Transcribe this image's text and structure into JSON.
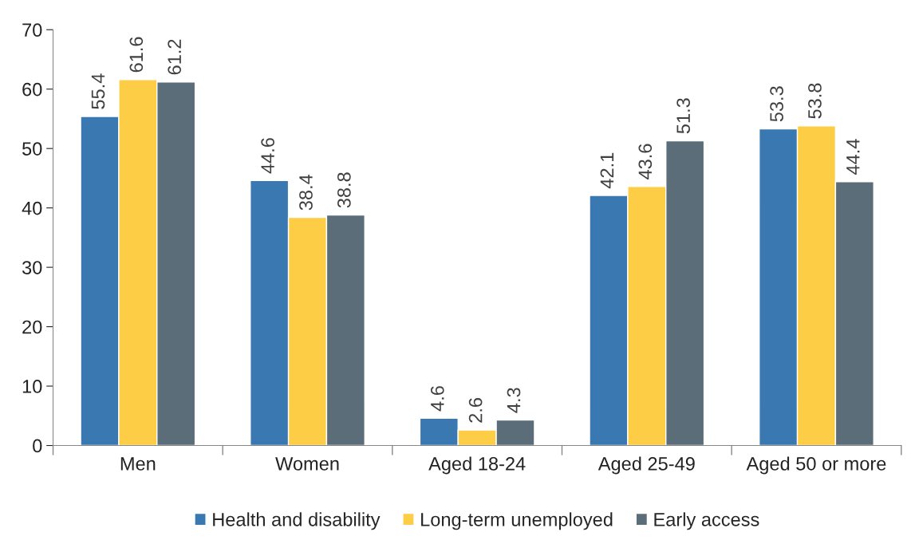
{
  "chart_data": {
    "type": "bar",
    "categories": [
      "Men",
      "Women",
      "Aged 18-24",
      "Aged 25-49",
      "Aged 50 or more"
    ],
    "series": [
      {
        "name": "Health and disability",
        "color": "#3a78b1",
        "values": [
          55.4,
          44.6,
          4.6,
          42.1,
          53.3
        ]
      },
      {
        "name": "Long-term unemployed",
        "color": "#fdcd45",
        "values": [
          61.6,
          38.4,
          2.6,
          43.6,
          53.8
        ]
      },
      {
        "name": "Early access",
        "color": "#5a6d79",
        "values": [
          61.2,
          38.8,
          4.3,
          51.3,
          44.4
        ]
      }
    ],
    "ylim": [
      0,
      70
    ],
    "yticks": [
      0,
      10,
      20,
      30,
      40,
      50,
      60,
      70
    ],
    "data_labels": true,
    "grid": false,
    "legend": "bottom"
  }
}
